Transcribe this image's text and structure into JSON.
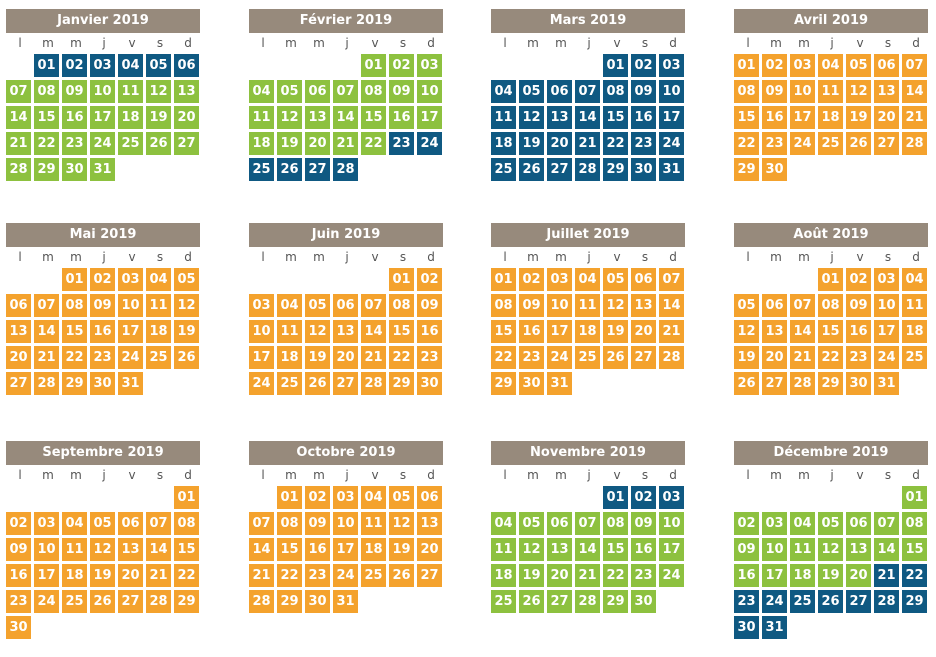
{
  "weekday_labels": [
    "l",
    "m",
    "m",
    "j",
    "v",
    "s",
    "d"
  ],
  "colors": {
    "green": "#8dc13f",
    "blue": "#0f5982",
    "orange": "#f4a22d",
    "header": "#978a7c"
  },
  "months": [
    {
      "title": "Janvier 2019",
      "first_weekday": 1,
      "days": 31,
      "periods": [
        {
          "from": 1,
          "to": 6,
          "color": "blue"
        },
        {
          "from": 7,
          "to": 31,
          "color": "green"
        }
      ]
    },
    {
      "title": "Février 2019",
      "first_weekday": 4,
      "days": 28,
      "periods": [
        {
          "from": 1,
          "to": 22,
          "color": "green"
        },
        {
          "from": 23,
          "to": 28,
          "color": "blue"
        }
      ]
    },
    {
      "title": "Mars 2019",
      "first_weekday": 4,
      "days": 31,
      "periods": [
        {
          "from": 1,
          "to": 31,
          "color": "blue"
        }
      ]
    },
    {
      "title": "Avril 2019",
      "first_weekday": 0,
      "days": 30,
      "periods": [
        {
          "from": 1,
          "to": 30,
          "color": "orange"
        }
      ]
    },
    {
      "title": "Mai 2019",
      "first_weekday": 2,
      "days": 31,
      "periods": [
        {
          "from": 1,
          "to": 31,
          "color": "orange"
        }
      ]
    },
    {
      "title": "Juin 2019",
      "first_weekday": 5,
      "days": 30,
      "periods": [
        {
          "from": 1,
          "to": 30,
          "color": "orange"
        }
      ]
    },
    {
      "title": "Juillet 2019",
      "first_weekday": 0,
      "days": 31,
      "periods": [
        {
          "from": 1,
          "to": 31,
          "color": "orange"
        }
      ]
    },
    {
      "title": "Août 2019",
      "first_weekday": 3,
      "days": 31,
      "periods": [
        {
          "from": 1,
          "to": 31,
          "color": "orange"
        }
      ]
    },
    {
      "title": "Septembre 2019",
      "first_weekday": 6,
      "days": 30,
      "periods": [
        {
          "from": 1,
          "to": 30,
          "color": "orange"
        }
      ]
    },
    {
      "title": "Octobre 2019",
      "first_weekday": 1,
      "days": 31,
      "periods": [
        {
          "from": 1,
          "to": 31,
          "color": "orange"
        }
      ]
    },
    {
      "title": "Novembre 2019",
      "first_weekday": 4,
      "days": 30,
      "periods": [
        {
          "from": 1,
          "to": 3,
          "color": "blue"
        },
        {
          "from": 4,
          "to": 30,
          "color": "green"
        }
      ]
    },
    {
      "title": "Décembre 2019",
      "first_weekday": 6,
      "days": 31,
      "periods": [
        {
          "from": 1,
          "to": 20,
          "color": "green"
        },
        {
          "from": 21,
          "to": 31,
          "color": "blue"
        }
      ]
    }
  ]
}
